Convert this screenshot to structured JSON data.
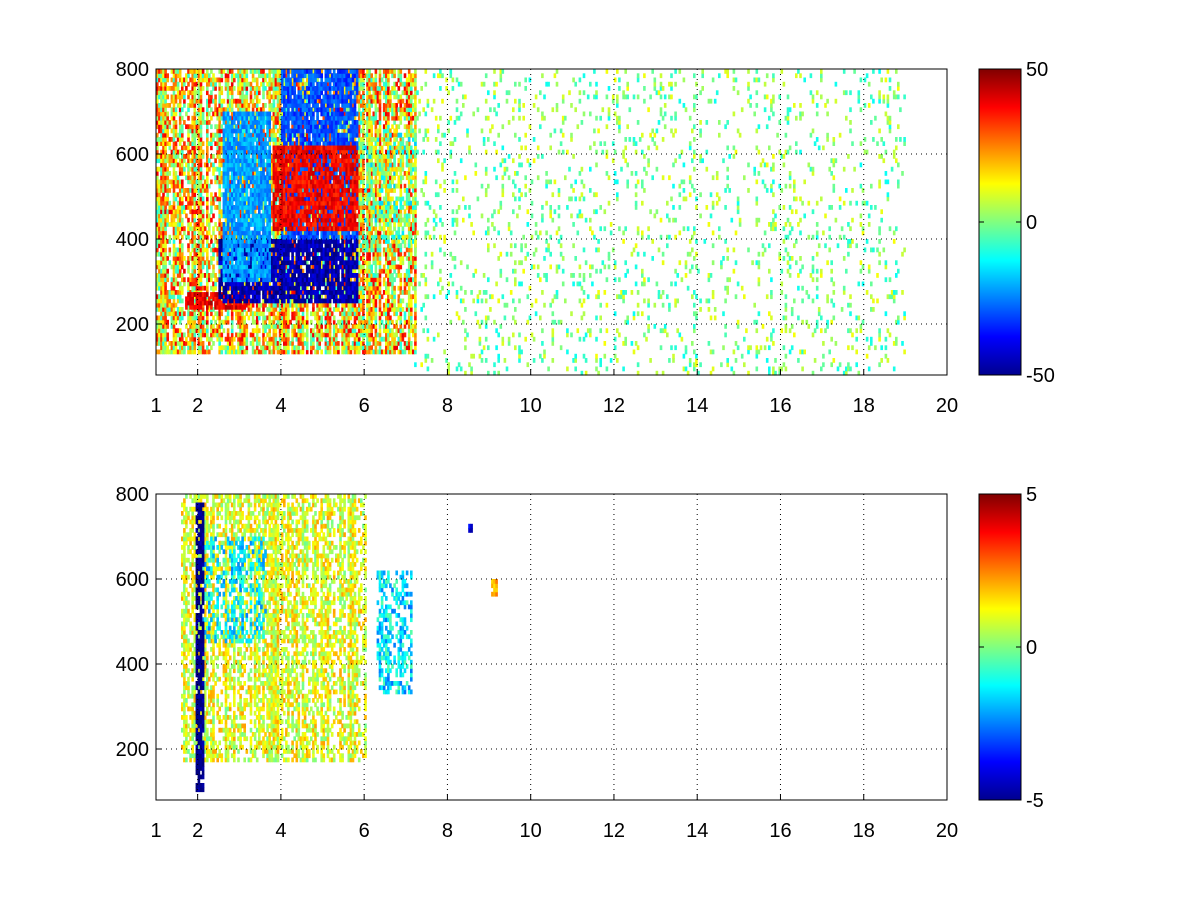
{
  "chart_data": [
    {
      "type": "heatmap",
      "title": "",
      "xlabel": "",
      "ylabel": "",
      "xlim": [
        1,
        20
      ],
      "ylim": [
        80,
        800
      ],
      "xticks": [
        1,
        2,
        4,
        6,
        8,
        10,
        12,
        14,
        16,
        18,
        20
      ],
      "yticks": [
        200,
        400,
        600,
        800
      ],
      "grid": true,
      "colormap": "jet",
      "colorbar": {
        "range": [
          -50,
          50
        ],
        "ticks": [
          -50,
          0,
          50
        ],
        "placement": "right"
      },
      "regions": [
        {
          "x": [
            1.0,
            7.2
          ],
          "y": [
            130,
            800
          ],
          "value": 15,
          "spread": 25,
          "density": 0.72
        },
        {
          "x": [
            6.0,
            7.2
          ],
          "y": [
            380,
            650
          ],
          "value": 0,
          "spread": 18,
          "density": 0.45
        },
        {
          "x": [
            7.2,
            19.0
          ],
          "y": [
            80,
            800
          ],
          "value": 0,
          "spread": 12,
          "density": 0.1
        }
      ],
      "bands": [
        {
          "x": [
            1.7,
            3.2
          ],
          "y": [
            235,
            270
          ],
          "value": 40
        },
        {
          "x": [
            2.5,
            5.8
          ],
          "y": [
            250,
            400
          ],
          "value": -45
        },
        {
          "x": [
            2.6,
            3.7
          ],
          "y": [
            300,
            700
          ],
          "value": -22
        },
        {
          "x": [
            4.0,
            5.8
          ],
          "y": [
            400,
            800
          ],
          "value": -30
        },
        {
          "x": [
            3.8,
            5.8
          ],
          "y": [
            420,
            620
          ],
          "value": 38
        }
      ]
    },
    {
      "type": "heatmap",
      "title": "",
      "xlabel": "",
      "ylabel": "",
      "xlim": [
        1,
        20
      ],
      "ylim": [
        80,
        800
      ],
      "xticks": [
        1,
        2,
        4,
        6,
        8,
        10,
        12,
        14,
        16,
        18,
        20
      ],
      "yticks": [
        200,
        400,
        600,
        800
      ],
      "grid": true,
      "colormap": "jet",
      "colorbar": {
        "range": [
          -5,
          5
        ],
        "ticks": [
          -5,
          0,
          5
        ],
        "placement": "right"
      },
      "regions": [
        {
          "x": [
            1.6,
            6.0
          ],
          "y": [
            170,
            800
          ],
          "value": 1,
          "spread": 1.2,
          "density": 0.6
        },
        {
          "x": [
            2.1,
            3.6
          ],
          "y": [
            450,
            700
          ],
          "value": -1.5,
          "spread": 1.0,
          "density": 0.4
        },
        {
          "x": [
            6.3,
            7.1
          ],
          "y": [
            330,
            620
          ],
          "value": -1.5,
          "spread": 1.2,
          "density": 0.5
        }
      ],
      "bands": [
        {
          "x": [
            1.95,
            2.1
          ],
          "y": [
            100,
            780
          ],
          "value": -5
        },
        {
          "x": [
            9.05,
            9.2
          ],
          "y": [
            560,
            600
          ],
          "value": 2
        },
        {
          "x": [
            8.5,
            8.6
          ],
          "y": [
            710,
            730
          ],
          "value": -4
        }
      ]
    }
  ]
}
